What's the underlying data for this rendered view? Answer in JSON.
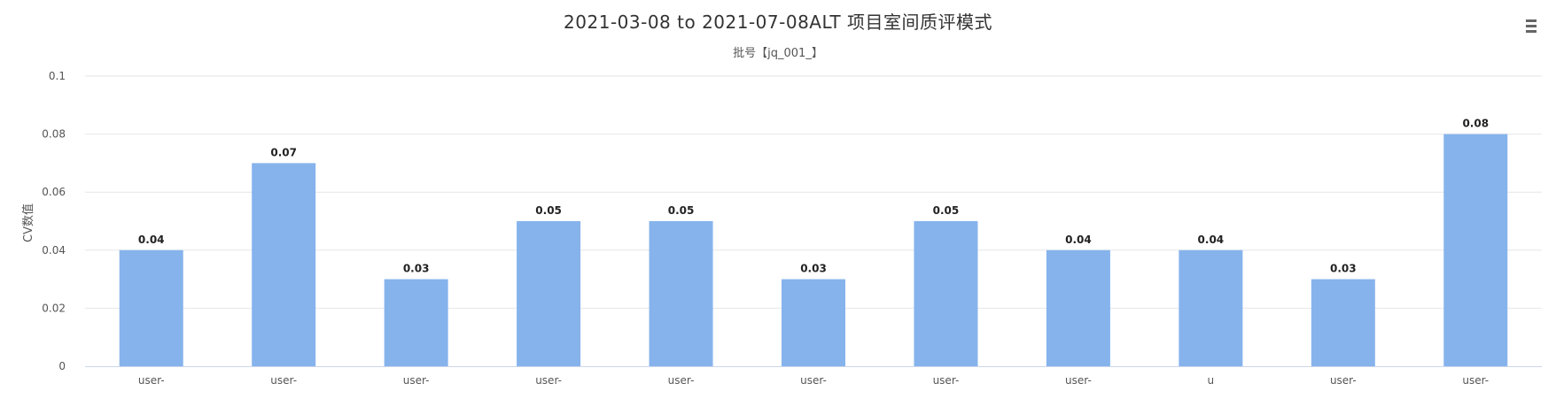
{
  "chart_data": {
    "type": "bar",
    "title": "2021-03-08 to 2021-07-08ALT 项目室间质评模式",
    "subtitle": "批号【jq_001_】",
    "xlabel": "",
    "ylabel": "CV数值",
    "ylim": [
      0,
      0.1
    ],
    "yticks": [
      "0",
      "0.02",
      "0.04",
      "0.06",
      "0.08",
      "0.1"
    ],
    "categories": [
      "user-",
      "user-",
      "user-",
      "user-",
      "user-",
      "user-",
      "user-",
      "user-",
      "u",
      "user-",
      "user-"
    ],
    "values": [
      0.04,
      0.07,
      0.03,
      0.05,
      0.05,
      0.03,
      0.05,
      0.04,
      0.04,
      0.03,
      0.08
    ],
    "data_labels": [
      "0.04",
      "0.07",
      "0.03",
      "0.05",
      "0.05",
      "0.03",
      "0.05",
      "0.04",
      "0.04",
      "0.03",
      "0.08"
    ],
    "bar_color": "#86b3ec",
    "grid": true,
    "legend": "none"
  },
  "toolbar": {
    "menu_icon": "hamburger-menu-icon"
  }
}
